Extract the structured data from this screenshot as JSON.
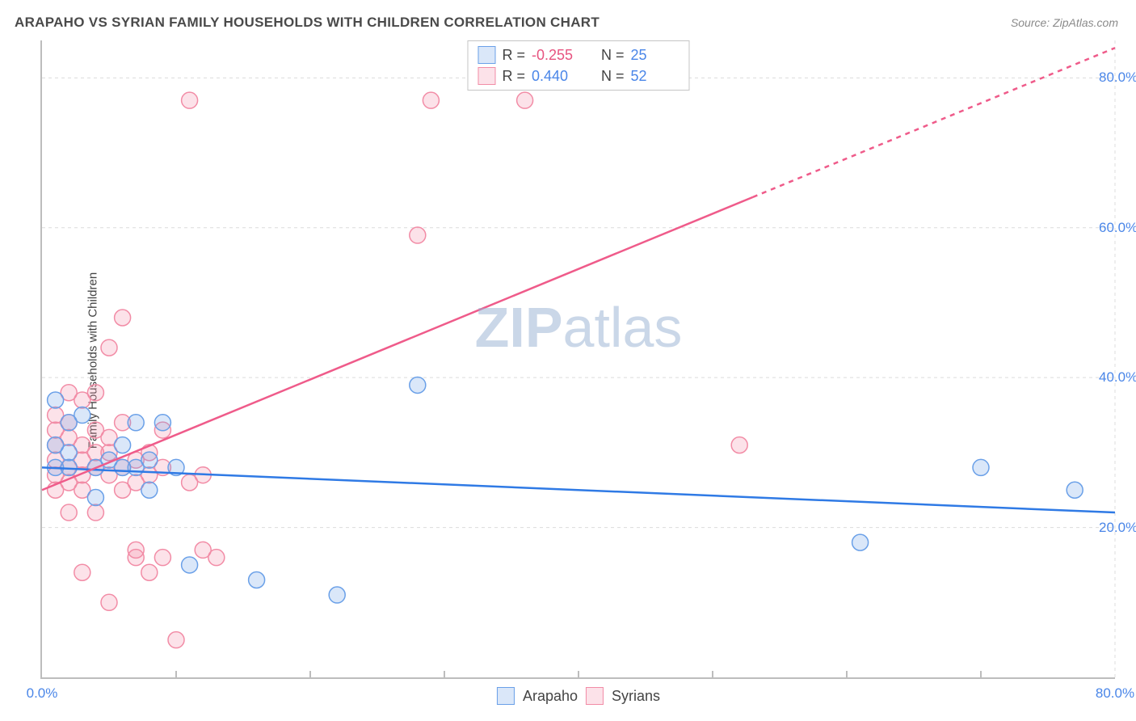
{
  "title": "ARAPAHO VS SYRIAN FAMILY HOUSEHOLDS WITH CHILDREN CORRELATION CHART",
  "source_prefix": "Source: ",
  "source_name": "ZipAtlas.com",
  "ylabel": "Family Households with Children",
  "watermark": {
    "bold": "ZIP",
    "rest": "atlas"
  },
  "chart": {
    "type": "scatter",
    "xlim": [
      0,
      80
    ],
    "ylim": [
      0,
      85
    ],
    "x_ticks_major": [
      0,
      80
    ],
    "x_ticks_minor": [
      10,
      20,
      30,
      40,
      50,
      60,
      70
    ],
    "y_ticks_major": [
      20,
      40,
      60,
      80
    ],
    "x_tick_format": "{v}.0%",
    "y_tick_format": "{v}.0%",
    "grid_color": "#dcdcdc",
    "grid_dash": "4 4",
    "axis_color": "#bdbdbd",
    "tick_label_color": "#4a86e8",
    "tick_label_fontsize": 17,
    "background_color": "#ffffff",
    "marker_radius": 10,
    "marker_fill_opacity": 0.25,
    "marker_stroke_width": 1.5,
    "line_width": 2.5,
    "series": {
      "arapaho": {
        "label": "Arapaho",
        "color": "#6aa0e8",
        "line_color": "#2f7ae5",
        "R": "-0.255",
        "R_negative": true,
        "N": "25",
        "trend": {
          "x1": 0,
          "y1": 28,
          "x2": 80,
          "y2": 22,
          "dash_from_x": null
        },
        "points": [
          [
            1,
            37
          ],
          [
            1,
            31
          ],
          [
            1,
            28
          ],
          [
            2,
            34
          ],
          [
            2,
            30
          ],
          [
            2,
            28
          ],
          [
            3,
            35
          ],
          [
            4,
            24
          ],
          [
            4,
            28
          ],
          [
            5,
            29
          ],
          [
            6,
            31
          ],
          [
            6,
            28
          ],
          [
            7,
            34
          ],
          [
            7,
            28
          ],
          [
            8,
            25
          ],
          [
            8,
            29
          ],
          [
            9,
            34
          ],
          [
            10,
            28
          ],
          [
            11,
            15
          ],
          [
            16,
            13
          ],
          [
            22,
            11
          ],
          [
            28,
            39
          ],
          [
            61,
            18
          ],
          [
            70,
            28
          ],
          [
            77,
            25
          ]
        ]
      },
      "syrians": {
        "label": "Syrians",
        "color": "#f28ca6",
        "line_color": "#ef5b8a",
        "R": "0.440",
        "R_negative": false,
        "N": "52",
        "trend": {
          "x1": 0,
          "y1": 25,
          "x2": 80,
          "y2": 84,
          "dash_from_x": 53
        },
        "points": [
          [
            1,
            29
          ],
          [
            1,
            33
          ],
          [
            1,
            35
          ],
          [
            1,
            27
          ],
          [
            1,
            25
          ],
          [
            1,
            31
          ],
          [
            2,
            38
          ],
          [
            2,
            32
          ],
          [
            2,
            26
          ],
          [
            2,
            28
          ],
          [
            2,
            22
          ],
          [
            2,
            34
          ],
          [
            3,
            37
          ],
          [
            3,
            29
          ],
          [
            3,
            25
          ],
          [
            3,
            31
          ],
          [
            3,
            14
          ],
          [
            3,
            27
          ],
          [
            4,
            30
          ],
          [
            4,
            33
          ],
          [
            4,
            22
          ],
          [
            4,
            38
          ],
          [
            4,
            28
          ],
          [
            5,
            44
          ],
          [
            5,
            10
          ],
          [
            5,
            27
          ],
          [
            5,
            30
          ],
          [
            5,
            32
          ],
          [
            6,
            48
          ],
          [
            6,
            28
          ],
          [
            6,
            34
          ],
          [
            6,
            25
          ],
          [
            7,
            29
          ],
          [
            7,
            26
          ],
          [
            7,
            17
          ],
          [
            7,
            16
          ],
          [
            8,
            30
          ],
          [
            8,
            27
          ],
          [
            8,
            14
          ],
          [
            9,
            16
          ],
          [
            9,
            28
          ],
          [
            9,
            33
          ],
          [
            10,
            5
          ],
          [
            11,
            77
          ],
          [
            11,
            26
          ],
          [
            12,
            27
          ],
          [
            12,
            17
          ],
          [
            13,
            16
          ],
          [
            28,
            59
          ],
          [
            29,
            77
          ],
          [
            36,
            77
          ],
          [
            52,
            31
          ]
        ]
      }
    }
  },
  "legend_top": [
    {
      "swatch_series": "arapaho",
      "R_label": "R =",
      "N_label": "N ="
    },
    {
      "swatch_series": "syrians",
      "R_label": "R =",
      "N_label": "N ="
    }
  ],
  "legend_bottom": [
    "arapaho",
    "syrians"
  ]
}
